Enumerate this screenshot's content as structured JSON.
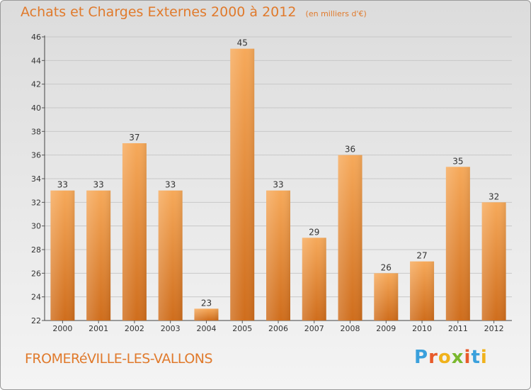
{
  "header": {
    "title": "Achats et Charges Externes 2000 à 2012",
    "subtitle": "(en milliers d'€)"
  },
  "footer": {
    "commune": "FROMERéVILLE-LES-VALLONS",
    "logo_text": "Proxiti",
    "logo_colors": [
      "#3aa0dc",
      "#e85a2a",
      "#f0b21c",
      "#7ab82e",
      "#e85a2a",
      "#3aa0dc",
      "#f0b21c"
    ]
  },
  "colors": {
    "bar_light": "#f6a95a",
    "bar_dark": "#cf6d1c",
    "grid": "#c8c8c8",
    "axis_text": "#333333",
    "title": "#e07a2c"
  },
  "chart_data": {
    "type": "bar",
    "title": "Achats et Charges Externes 2000 à 2012",
    "subtitle": "(en milliers d'€)",
    "xlabel": "",
    "ylabel": "",
    "categories": [
      "2000",
      "2001",
      "2002",
      "2003",
      "2004",
      "2005",
      "2006",
      "2007",
      "2008",
      "2009",
      "2010",
      "2011",
      "2012"
    ],
    "values": [
      33,
      33,
      37,
      33,
      23,
      45,
      33,
      29,
      36,
      26,
      27,
      35,
      32
    ],
    "ylim": [
      22,
      46
    ],
    "yticks": [
      22,
      24,
      26,
      28,
      30,
      32,
      34,
      36,
      38,
      40,
      42,
      44,
      46
    ],
    "grid": true,
    "legend": "none",
    "data_labels": true
  }
}
